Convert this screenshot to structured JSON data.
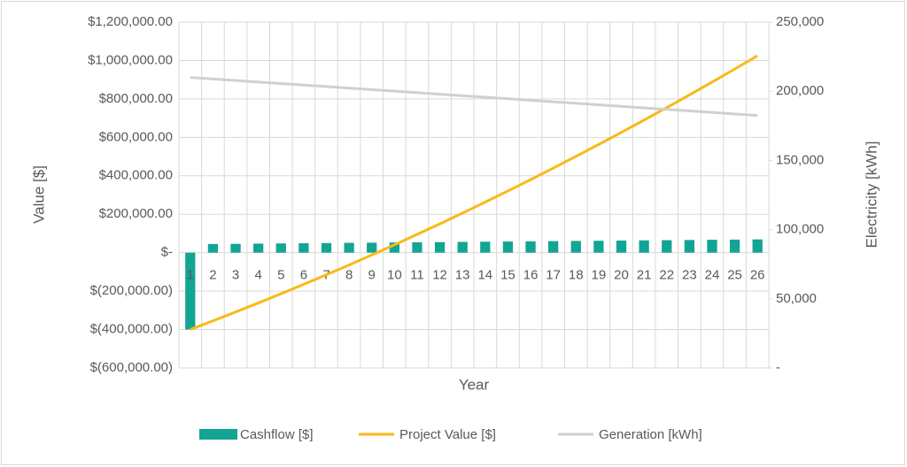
{
  "chart_data": {
    "type": "bar_line_combo",
    "x_label": "Year",
    "y_label": "Value [$]",
    "y2_label": "Electricity [kWh]",
    "categories": [
      "1",
      "2",
      "3",
      "4",
      "5",
      "6",
      "7",
      "8",
      "9",
      "10",
      "11",
      "12",
      "13",
      "14",
      "15",
      "16",
      "17",
      "18",
      "19",
      "20",
      "21",
      "22",
      "23",
      "24",
      "25",
      "26"
    ],
    "series": [
      {
        "name": "Cashflow [$]",
        "type": "bar",
        "color": "#12a594",
        "axis": "y",
        "values": [
          -400000,
          45000,
          46000,
          47000,
          48000,
          49000,
          50000,
          51000,
          52000,
          53000,
          54000,
          55000,
          56000,
          57000,
          58000,
          59000,
          60000,
          61000,
          62000,
          63000,
          64000,
          65000,
          66000,
          67000,
          68000,
          69000
        ]
      },
      {
        "name": "Project Value [$]",
        "type": "line",
        "color": "#f9b918",
        "axis": "y",
        "values": [
          -400000,
          -355000,
          -309000,
          -262000,
          -214000,
          -165000,
          -115000,
          -64000,
          -12000,
          41000,
          95000,
          150000,
          206000,
          263000,
          321000,
          380000,
          440000,
          501000,
          563000,
          626000,
          690000,
          755000,
          821000,
          888000,
          956000,
          1025000
        ]
      },
      {
        "name": "Generation [kWh]",
        "type": "line",
        "color": "#d0d0d0",
        "axis": "y2",
        "values": [
          210000,
          208900,
          207800,
          206700,
          205600,
          204500,
          203400,
          202300,
          201200,
          200100,
          199000,
          197900,
          196800,
          195700,
          194600,
          193500,
          192400,
          191300,
          190200,
          189100,
          188000,
          186900,
          185800,
          184700,
          183600,
          182500
        ]
      }
    ],
    "ylim": [
      -600000,
      1200000
    ],
    "yticks": [
      {
        "value": -600000,
        "label": "$(600,000.00)"
      },
      {
        "value": -400000,
        "label": "$(400,000.00)"
      },
      {
        "value": -200000,
        "label": "$(200,000.00)"
      },
      {
        "value": 0,
        "label": "$-"
      },
      {
        "value": 200000,
        "label": "$200,000.00"
      },
      {
        "value": 400000,
        "label": "$400,000.00"
      },
      {
        "value": 600000,
        "label": "$600,000.00"
      },
      {
        "value": 800000,
        "label": "$800,000.00"
      },
      {
        "value": 1000000,
        "label": "$1,000,000.00"
      },
      {
        "value": 1200000,
        "label": "$1,200,000.00"
      }
    ],
    "y2lim": [
      0,
      250000
    ],
    "y2ticks": [
      {
        "value": 0,
        "label": "-"
      },
      {
        "value": 50000,
        "label": "50,000"
      },
      {
        "value": 100000,
        "label": "100,000"
      },
      {
        "value": 150000,
        "label": "150,000"
      },
      {
        "value": 200000,
        "label": "200,000"
      },
      {
        "value": 250000,
        "label": "250,000"
      }
    ],
    "grid": true,
    "legend": "bottom"
  }
}
